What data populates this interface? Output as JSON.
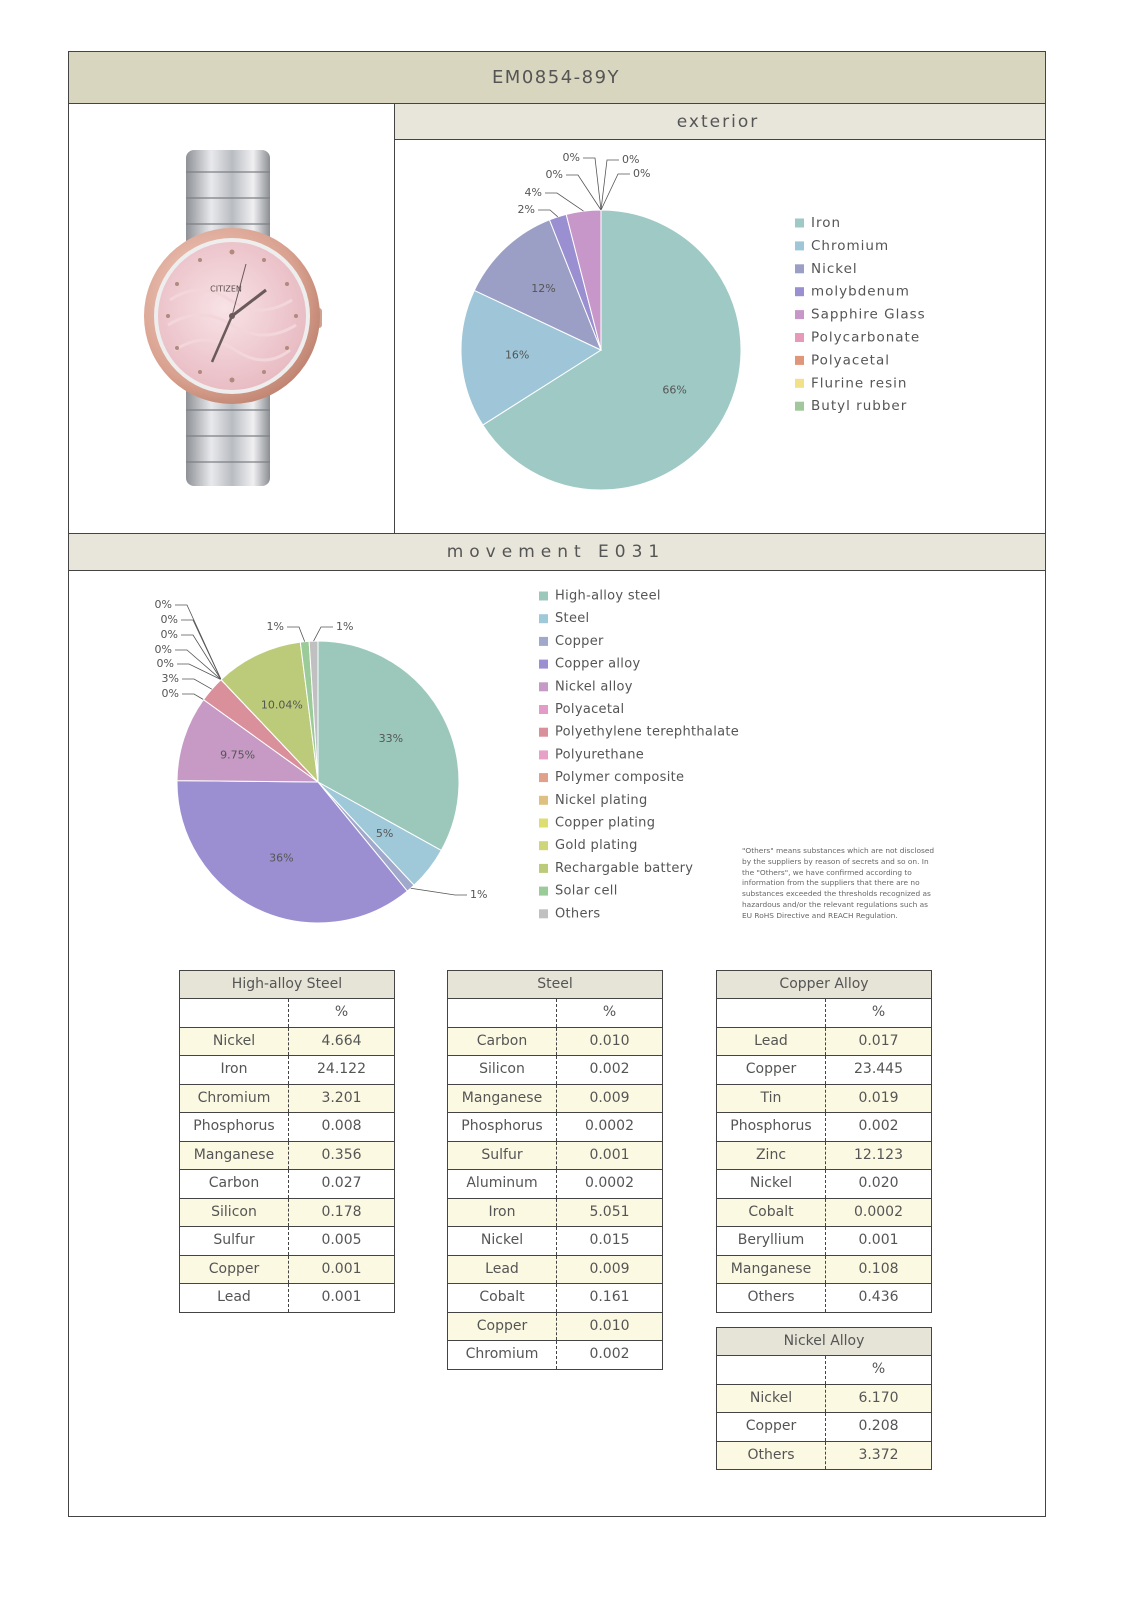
{
  "header": {
    "title": "EM0854-89Y"
  },
  "watch_brand": "CITIZEN",
  "chart_data": [
    {
      "type": "pie",
      "title": "exterior",
      "categories": [
        "Iron",
        "Chromium",
        "Nickel",
        "molybdenum",
        "Sapphire Glass",
        "Polycarbonate",
        "Polyacetal",
        "Flurine resin",
        "Butyl rubber"
      ],
      "values": [
        66,
        16,
        12,
        2,
        4,
        0,
        0,
        0,
        0
      ],
      "value_labels": [
        "66%",
        "16%",
        "12%",
        "2%",
        "4%",
        "0%",
        "0%",
        "0%",
        "0%"
      ],
      "colors": [
        "#9fc9c5",
        "#9ec6d8",
        "#9b9fc5",
        "#9a8fd0",
        "#c797c9",
        "#e49ab8",
        "#e0967a",
        "#f2e08a",
        "#a0c89a"
      ]
    },
    {
      "type": "pie",
      "title": "movement E031",
      "categories": [
        "High-alloy steel",
        "Steel",
        "Copper",
        "Copper alloy",
        "Nickel alloy",
        "Polyacetal",
        "Polyethylene terephthalate",
        "Polyurethane",
        "Polymer composite",
        "Nickel plating",
        "Copper plating",
        "Gold plating",
        "Rechargable battery",
        "Solar cell",
        "Others"
      ],
      "values": [
        33,
        5,
        1,
        36,
        9.75,
        0,
        3,
        0,
        0,
        0,
        0,
        0,
        10.04,
        1,
        1
      ],
      "value_labels": [
        "33%",
        "5%",
        "1%",
        "36%",
        "9.75%",
        "0%",
        "3%",
        "0%",
        "0%",
        "0%",
        "0%",
        "0%",
        "10.04%",
        "1%",
        "1%"
      ],
      "colors": [
        "#9cc8bc",
        "#9fc9d9",
        "#a0a8cc",
        "#9b8fd1",
        "#c79ac6",
        "#e39bc8",
        "#d9909a",
        "#e7a0c8",
        "#e0a08a",
        "#e0c080",
        "#dede70",
        "#cfd67a",
        "#bccb7a",
        "#9ccb9a",
        "#c0c0c0"
      ]
    }
  ],
  "note": "\"Others\" means substances which are not disclosed by the suppliers by reason of secrets and so on. In the \"Others\", we have confirmed according to information from the suppliers that there are no substances exceeded the thresholds recognized as hazardous and/or the relevant regulations such as EU RoHS Directive and REACH Regulation.",
  "tables": [
    {
      "title": "High-alloy Steel",
      "unit": "%",
      "rows": [
        [
          "Nickel",
          "4.664"
        ],
        [
          "Iron",
          "24.122"
        ],
        [
          "Chromium",
          "3.201"
        ],
        [
          "Phosphorus",
          "0.008"
        ],
        [
          "Manganese",
          "0.356"
        ],
        [
          "Carbon",
          "0.027"
        ],
        [
          "Silicon",
          "0.178"
        ],
        [
          "Sulfur",
          "0.005"
        ],
        [
          "Copper",
          "0.001"
        ],
        [
          "Lead",
          "0.001"
        ]
      ]
    },
    {
      "title": "Steel",
      "unit": "%",
      "rows": [
        [
          "Carbon",
          "0.010"
        ],
        [
          "Silicon",
          "0.002"
        ],
        [
          "Manganese",
          "0.009"
        ],
        [
          "Phosphorus",
          "0.0002"
        ],
        [
          "Sulfur",
          "0.001"
        ],
        [
          "Aluminum",
          "0.0002"
        ],
        [
          "Iron",
          "5.051"
        ],
        [
          "Nickel",
          "0.015"
        ],
        [
          "Lead",
          "0.009"
        ],
        [
          "Cobalt",
          "0.161"
        ],
        [
          "Copper",
          "0.010"
        ],
        [
          "Chromium",
          "0.002"
        ]
      ]
    },
    {
      "title": "Copper Alloy",
      "unit": "%",
      "rows": [
        [
          "Lead",
          "0.017"
        ],
        [
          "Copper",
          "23.445"
        ],
        [
          "Tin",
          "0.019"
        ],
        [
          "Phosphorus",
          "0.002"
        ],
        [
          "Zinc",
          "12.123"
        ],
        [
          "Nickel",
          "0.020"
        ],
        [
          "Cobalt",
          "0.0002"
        ],
        [
          "Beryllium",
          "0.001"
        ],
        [
          "Manganese",
          "0.108"
        ],
        [
          "Others",
          "0.436"
        ]
      ]
    },
    {
      "title": "Nickel Alloy",
      "unit": "%",
      "rows": [
        [
          "Nickel",
          "6.170"
        ],
        [
          "Copper",
          "0.208"
        ],
        [
          "Others",
          "3.372"
        ]
      ]
    }
  ]
}
